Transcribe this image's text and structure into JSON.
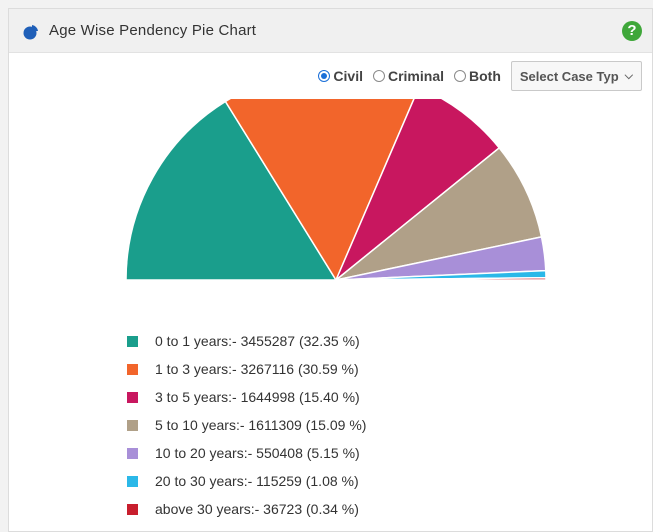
{
  "panel": {
    "title": "Age Wise Pendency Pie Chart",
    "help_label": "?"
  },
  "controls": {
    "case_type_options": [
      {
        "label": "Civil",
        "checked": true
      },
      {
        "label": "Criminal",
        "checked": false
      },
      {
        "label": "Both",
        "checked": false
      }
    ],
    "select_label": "Select Case Typ",
    "select_icon": "chevron-down-icon"
  },
  "colors": {
    "accent_radio": "#1a6fd8",
    "help": "#3fa73a"
  },
  "chart_data": {
    "type": "pie",
    "shape": "semi-circle",
    "categories": [
      "0 to 1 years",
      "1 to 3 years",
      "3 to 5 years",
      "5 to 10 years",
      "10 to 20 years",
      "20 to 30 years",
      "above 30 years"
    ],
    "values": [
      3455287,
      3267116,
      1644998,
      1611309,
      550408,
      115259,
      36723
    ],
    "percents": [
      "32.35 %",
      "30.59 %",
      "15.40 %",
      "15.09 %",
      "5.15 %",
      "1.08 %",
      "0.34 %"
    ],
    "colors": [
      "#1a9e8c",
      "#f2652b",
      "#c8175f",
      "#b0a088",
      "#a88fd8",
      "#2bb8e8",
      "#c81e2d"
    ],
    "legend_labels": [
      "0 to 1 years:- 3455287 (32.35 %)",
      "1 to 3 years:- 3267116 (30.59 %)",
      "3 to 5 years:- 1644998 (15.40 %)",
      "5 to 10 years:- 1611309 (15.09 %)",
      "10 to 20 years:- 550408 (5.15 %)",
      "20 to 30 years:- 115259 (1.08 %)",
      "above 30 years:- 36723 (0.34 %)"
    ],
    "legend_position": "bottom-left"
  }
}
